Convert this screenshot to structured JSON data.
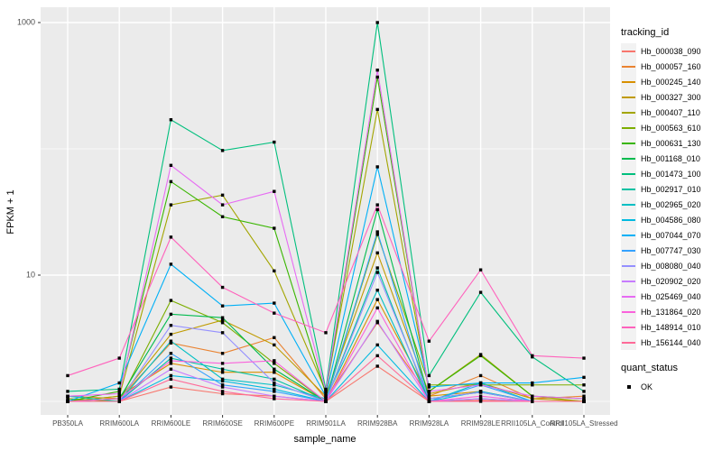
{
  "figure": {
    "y_axis_title": "FPKM + 1",
    "x_axis_title": "sample_name",
    "legend_title": "tracking_id",
    "quant_legend_title": "quant_status",
    "quant_ok_label": "OK",
    "panel_bg": "#EBEBEB",
    "grid_color": "#FFFFFF",
    "tick_text_color": "#4D4D4D",
    "point_color": "#000000"
  },
  "chart_data": {
    "type": "line",
    "title": "",
    "xlabel": "sample_name",
    "ylabel": "FPKM + 1",
    "y_scale": "log10",
    "ylim": [
      1,
      1300
    ],
    "y_tick_values": [
      10,
      1000
    ],
    "y_tick_labels": [
      "10",
      "1000"
    ],
    "minor_grid_values": [
      1,
      100
    ],
    "grid": true,
    "legend_position": "right",
    "categories": [
      "PB350LA",
      "RRIM600LA",
      "RRIM600LE",
      "RRIM600SE",
      "RRIM600PE",
      "RRIM901LA",
      "RRIM928BA",
      "RRIM928LA",
      "RRIM928LE",
      "RRII105LA_Control",
      "RRII105LA_Stressed"
    ],
    "series": [
      {
        "name": "Hb_000038_090",
        "color": "#F8766D",
        "values": [
          1.05,
          1.0,
          1.3,
          1.15,
          1.1,
          1.0,
          1.9,
          1.0,
          1.02,
          1.0,
          1.0
        ]
      },
      {
        "name": "Hb_000057_160",
        "color": "#EA8331",
        "values": [
          1.1,
          1.05,
          2.9,
          2.4,
          3.2,
          1.05,
          4.2,
          1.1,
          1.6,
          1.05,
          1.1
        ]
      },
      {
        "name": "Hb_000245_140",
        "color": "#D89000",
        "values": [
          1.0,
          1.1,
          2.0,
          1.7,
          1.7,
          1.0,
          6.4,
          1.1,
          1.2,
          1.0,
          1.0
        ]
      },
      {
        "name": "Hb_000327_300",
        "color": "#C09B00",
        "values": [
          1.0,
          1.05,
          3.4,
          4.4,
          2.8,
          1.1,
          15,
          1.15,
          1.4,
          1.05,
          1.0
        ]
      },
      {
        "name": "Hb_000407_110",
        "color": "#A3A500",
        "values": [
          1.0,
          1.1,
          36,
          43,
          10.8,
          1.2,
          205,
          1.2,
          2.35,
          1.1,
          1.0
        ]
      },
      {
        "name": "Hb_000563_610",
        "color": "#7CAE00",
        "values": [
          1.05,
          1.0,
          6.3,
          4.2,
          2.0,
          1.0,
          21,
          1.35,
          1.35,
          1.35,
          1.35
        ]
      },
      {
        "name": "Hb_000631_130",
        "color": "#39B600",
        "values": [
          1.0,
          1.2,
          55,
          29,
          23.5,
          1.15,
          370,
          1.2,
          2.3,
          1.1,
          1.05
        ]
      },
      {
        "name": "Hb_001168_010",
        "color": "#00BB4E",
        "values": [
          1.0,
          1.05,
          4.9,
          4.6,
          1.8,
          1.0,
          33,
          1.05,
          1.18,
          1.0,
          1.0
        ]
      },
      {
        "name": "Hb_001473_100",
        "color": "#00BF7D",
        "values": [
          1.2,
          1.25,
          170,
          97,
          113,
          1.25,
          1000,
          1.6,
          7.3,
          2.25,
          1.2
        ]
      },
      {
        "name": "Hb_002917_010",
        "color": "#00C1A3",
        "values": [
          1.1,
          1.0,
          2.2,
          1.8,
          1.5,
          1.0,
          11.4,
          1.0,
          1.05,
          1.0,
          1.0
        ]
      },
      {
        "name": "Hb_002965_020",
        "color": "#00BFC4",
        "values": [
          1.0,
          1.0,
          3.0,
          1.5,
          1.35,
          1.05,
          7.6,
          1.0,
          1.4,
          1.0,
          1.0
        ]
      },
      {
        "name": "Hb_004586_080",
        "color": "#00BAE0",
        "values": [
          1.0,
          1.0,
          1.6,
          1.45,
          1.25,
          1.0,
          2.8,
          1.0,
          1.2,
          1.0,
          1.0
        ]
      },
      {
        "name": "Hb_007044_070",
        "color": "#00B0F6",
        "values": [
          1.0,
          1.4,
          12.2,
          5.7,
          6.0,
          1.1,
          72,
          1.3,
          1.4,
          1.4,
          1.55
        ]
      },
      {
        "name": "Hb_007747_030",
        "color": "#35A2FF",
        "values": [
          1.0,
          1.0,
          2.4,
          1.35,
          1.2,
          1.0,
          22,
          1.0,
          1.35,
          1.0,
          1.0
        ]
      },
      {
        "name": "Hb_008080_040",
        "color": "#9590FF",
        "values": [
          1.0,
          1.0,
          4.0,
          3.5,
          1.4,
          1.0,
          10.5,
          1.05,
          1.18,
          1.0,
          1.0
        ]
      },
      {
        "name": "Hb_020902_020",
        "color": "#C77CFF",
        "values": [
          1.0,
          1.0,
          1.8,
          1.3,
          1.1,
          1.0,
          4.3,
          1.0,
          1.05,
          1.0,
          1.0
        ]
      },
      {
        "name": "Hb_025469_040",
        "color": "#E76BF3",
        "values": [
          1.1,
          1.15,
          74,
          36,
          46,
          1.2,
          420,
          1.2,
          1.35,
          1.1,
          1.05
        ]
      },
      {
        "name": "Hb_131864_020",
        "color": "#FA62DB",
        "values": [
          1.0,
          1.05,
          2.1,
          2.0,
          2.1,
          1.0,
          5.5,
          1.0,
          1.1,
          1.0,
          1.0
        ]
      },
      {
        "name": "Hb_148914_010",
        "color": "#FF62BC",
        "values": [
          1.6,
          2.2,
          20,
          8,
          5,
          3.5,
          36,
          3.0,
          11,
          2.3,
          2.2
        ]
      },
      {
        "name": "Hb_156144_040",
        "color": "#FF6A98",
        "values": [
          1.0,
          1.0,
          1.5,
          1.2,
          1.05,
          1.0,
          2.3,
          1.0,
          1.0,
          1.0,
          1.0
        ]
      }
    ],
    "quant_status": {
      "label": "OK",
      "marker": "black-square"
    }
  }
}
